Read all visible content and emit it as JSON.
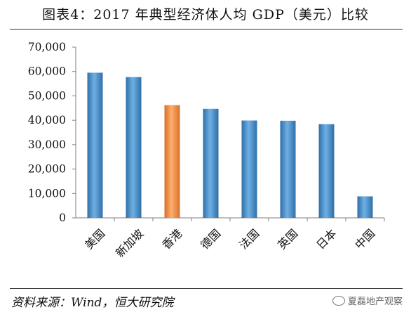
{
  "title": "图表4：2017 年典型经济体人均 GDP（美元）比较",
  "source": "资料来源：Wind，恒大研究院",
  "watermark": "夏磊地产观察",
  "chart_data": {
    "type": "bar",
    "categories": [
      "美国",
      "新加坡",
      "香港",
      "德国",
      "法国",
      "英国",
      "日本",
      "中国"
    ],
    "values": [
      59500,
      57700,
      46200,
      44700,
      39900,
      39800,
      38400,
      8800
    ],
    "highlight_index": 2,
    "ylim": [
      0,
      70000
    ],
    "yticks": [
      "0",
      "10,000",
      "20,000",
      "30,000",
      "40,000",
      "50,000",
      "60,000",
      "70,000"
    ],
    "ytick_values": [
      0,
      10000,
      20000,
      30000,
      40000,
      50000,
      60000,
      70000
    ],
    "grid": false,
    "colors": {
      "bar": "#4a8ec9",
      "highlight": "#f0883c",
      "axis": "#7f7f7f"
    }
  },
  "icons": {
    "watermark": "wechat-icon"
  }
}
